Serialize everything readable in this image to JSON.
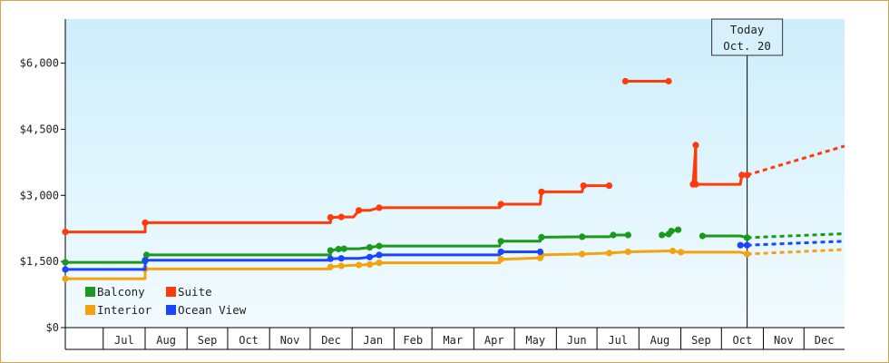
{
  "chart_data": {
    "type": "line",
    "title": "",
    "xlabel": "",
    "ylabel": "",
    "ylim": [
      0,
      7000
    ],
    "xlim": [
      "2009-06-03",
      "2010-12-31"
    ],
    "grid": false,
    "legend_position": "bottom-left",
    "x_tick_labels": [
      {
        "label": "Jul",
        "start": "2009-07-01",
        "end": "2009-08-01"
      },
      {
        "label": "Aug",
        "start": "2009-08-01",
        "end": "2009-09-01"
      },
      {
        "label": "Sep",
        "start": "2009-09-01",
        "end": "2009-10-01"
      },
      {
        "label": "Oct",
        "start": "2009-10-01",
        "end": "2009-11-01"
      },
      {
        "label": "Nov",
        "start": "2009-11-01",
        "end": "2009-12-01"
      },
      {
        "label": "Dec",
        "start": "2009-12-01",
        "end": "2010-01-01"
      },
      {
        "label": "Jan",
        "start": "2010-01-01",
        "end": "2010-02-01"
      },
      {
        "label": "Feb",
        "start": "2010-02-01",
        "end": "2010-03-01"
      },
      {
        "label": "Mar",
        "start": "2010-03-01",
        "end": "2010-04-01"
      },
      {
        "label": "Apr",
        "start": "2010-04-01",
        "end": "2010-05-01"
      },
      {
        "label": "May",
        "start": "2010-05-01",
        "end": "2010-06-01"
      },
      {
        "label": "Jun",
        "start": "2010-06-01",
        "end": "2010-07-01"
      },
      {
        "label": "Jul",
        "start": "2010-07-01",
        "end": "2010-08-01"
      },
      {
        "label": "Aug",
        "start": "2010-08-01",
        "end": "2010-09-01"
      },
      {
        "label": "Sep",
        "start": "2010-09-01",
        "end": "2010-10-01"
      },
      {
        "label": "Oct",
        "start": "2010-10-01",
        "end": "2010-11-01"
      },
      {
        "label": "Nov",
        "start": "2010-11-01",
        "end": "2010-12-01"
      },
      {
        "label": "Dec",
        "start": "2010-12-01",
        "end": "2010-12-31"
      }
    ],
    "y_ticks": [
      {
        "value": 0,
        "label": "$0"
      },
      {
        "value": 1500,
        "label": "$1,500"
      },
      {
        "value": 3000,
        "label": "$3,000"
      },
      {
        "value": 4500,
        "label": "$4,500"
      },
      {
        "value": 6000,
        "label": "$6,000"
      }
    ],
    "today_marker": {
      "date": "2010-10-20",
      "line1": "Today",
      "line2": "Oct. 20"
    },
    "legend_columns": [
      [
        "Balcony",
        "Interior"
      ],
      [
        "Suite",
        "Ocean View"
      ]
    ],
    "series": [
      {
        "name": "Balcony",
        "color": "#1a9a1a",
        "segments": [
          [
            [
              "2009-06-03",
              1480
            ],
            [
              "2009-08-01",
              1480
            ],
            [
              "2009-08-01",
              1510
            ],
            [
              "2009-08-02",
              1650
            ],
            [
              "2009-12-16",
              1650
            ],
            [
              "2009-12-16",
              1750
            ],
            [
              "2009-12-22",
              1780
            ],
            [
              "2009-12-26",
              1790
            ],
            [
              "2010-01-06",
              1790
            ],
            [
              "2010-01-14",
              1820
            ],
            [
              "2010-01-21",
              1850
            ],
            [
              "2010-04-20",
              1850
            ],
            [
              "2010-04-21",
              1960
            ],
            [
              "2010-05-20",
              1960
            ],
            [
              "2010-05-21",
              2050
            ],
            [
              "2010-06-20",
              2060
            ],
            [
              "2010-07-10",
              2060
            ],
            [
              "2010-07-13",
              2100
            ],
            [
              "2010-07-24",
              2100
            ]
          ],
          [
            [
              "2010-08-18",
              2100
            ],
            [
              "2010-08-23",
              2120
            ]
          ],
          [
            [
              "2010-08-25",
              2190
            ],
            [
              "2010-08-30",
              2220
            ]
          ],
          [
            [
              "2010-09-17",
              2080
            ],
            [
              "2010-10-15",
              2080
            ],
            [
              "2010-10-20",
              2040
            ],
            [
              "2010-10-20",
              2040
            ]
          ]
        ],
        "forecast": [
          [
            "2010-10-20",
            2040
          ],
          [
            "2010-12-31",
            2130
          ]
        ]
      },
      {
        "name": "Suite",
        "color": "#ff3b0a",
        "segments": [
          [
            [
              "2009-06-03",
              2170
            ],
            [
              "2009-08-01",
              2170
            ],
            [
              "2009-08-01",
              2380
            ],
            [
              "2009-12-16",
              2380
            ],
            [
              "2009-12-16",
              2500
            ],
            [
              "2009-12-24",
              2510
            ],
            [
              "2010-01-02",
              2510
            ],
            [
              "2010-01-06",
              2660
            ],
            [
              "2010-01-14",
              2660
            ],
            [
              "2010-01-21",
              2720
            ],
            [
              "2010-04-20",
              2720
            ],
            [
              "2010-04-21",
              2800
            ],
            [
              "2010-05-20",
              2800
            ],
            [
              "2010-05-21",
              3080
            ],
            [
              "2010-06-20",
              3080
            ],
            [
              "2010-06-21",
              3220
            ],
            [
              "2010-07-10",
              3220
            ]
          ]
        ],
        "islands": [
          [
            [
              "2010-07-22",
              5590
            ],
            [
              "2010-08-23",
              5590
            ]
          ]
        ],
        "segments_extra": [
          [
            [
              "2010-09-10",
              3250
            ],
            [
              "2010-09-12",
              4140
            ],
            [
              "2010-09-12",
              3250
            ],
            [
              "2010-10-15",
              3250
            ],
            [
              "2010-10-16",
              3460
            ],
            [
              "2010-10-20",
              3460
            ]
          ]
        ],
        "forecast": [
          [
            "2010-10-20",
            3460
          ],
          [
            "2010-12-31",
            4120
          ]
        ]
      },
      {
        "name": "Interior",
        "color": "#f5a20f",
        "segments": [
          [
            [
              "2009-06-03",
              1110
            ],
            [
              "2009-08-01",
              1110
            ],
            [
              "2009-08-01",
              1330
            ],
            [
              "2009-12-16",
              1330
            ],
            [
              "2009-12-16",
              1380
            ],
            [
              "2009-12-24",
              1400
            ],
            [
              "2010-01-06",
              1420
            ],
            [
              "2010-01-14",
              1430
            ],
            [
              "2010-01-21",
              1470
            ],
            [
              "2010-04-20",
              1470
            ],
            [
              "2010-04-21",
              1550
            ],
            [
              "2010-05-20",
              1580
            ],
            [
              "2010-05-21",
              1650
            ],
            [
              "2010-06-20",
              1670
            ],
            [
              "2010-07-10",
              1690
            ],
            [
              "2010-07-24",
              1720
            ],
            [
              "2010-08-26",
              1740
            ],
            [
              "2010-09-01",
              1710
            ],
            [
              "2010-10-15",
              1710
            ],
            [
              "2010-10-20",
              1670
            ]
          ]
        ],
        "forecast": [
          [
            "2010-10-20",
            1670
          ],
          [
            "2010-12-31",
            1770
          ]
        ]
      },
      {
        "name": "Ocean View",
        "color": "#1a46ff",
        "segments": [
          [
            [
              "2009-06-03",
              1320
            ],
            [
              "2009-08-01",
              1320
            ],
            [
              "2009-08-01",
              1530
            ],
            [
              "2009-12-16",
              1530
            ],
            [
              "2009-12-16",
              1560
            ],
            [
              "2009-12-24",
              1570
            ],
            [
              "2010-01-06",
              1570
            ],
            [
              "2010-01-14",
              1600
            ],
            [
              "2010-01-21",
              1650
            ],
            [
              "2010-04-20",
              1650
            ],
            [
              "2010-04-21",
              1720
            ],
            [
              "2010-05-20",
              1720
            ]
          ],
          [
            [
              "2010-10-15",
              1870
            ],
            [
              "2010-10-20",
              1870
            ]
          ]
        ],
        "forecast": [
          [
            "2010-10-20",
            1870
          ],
          [
            "2010-12-31",
            1960
          ]
        ]
      }
    ]
  }
}
